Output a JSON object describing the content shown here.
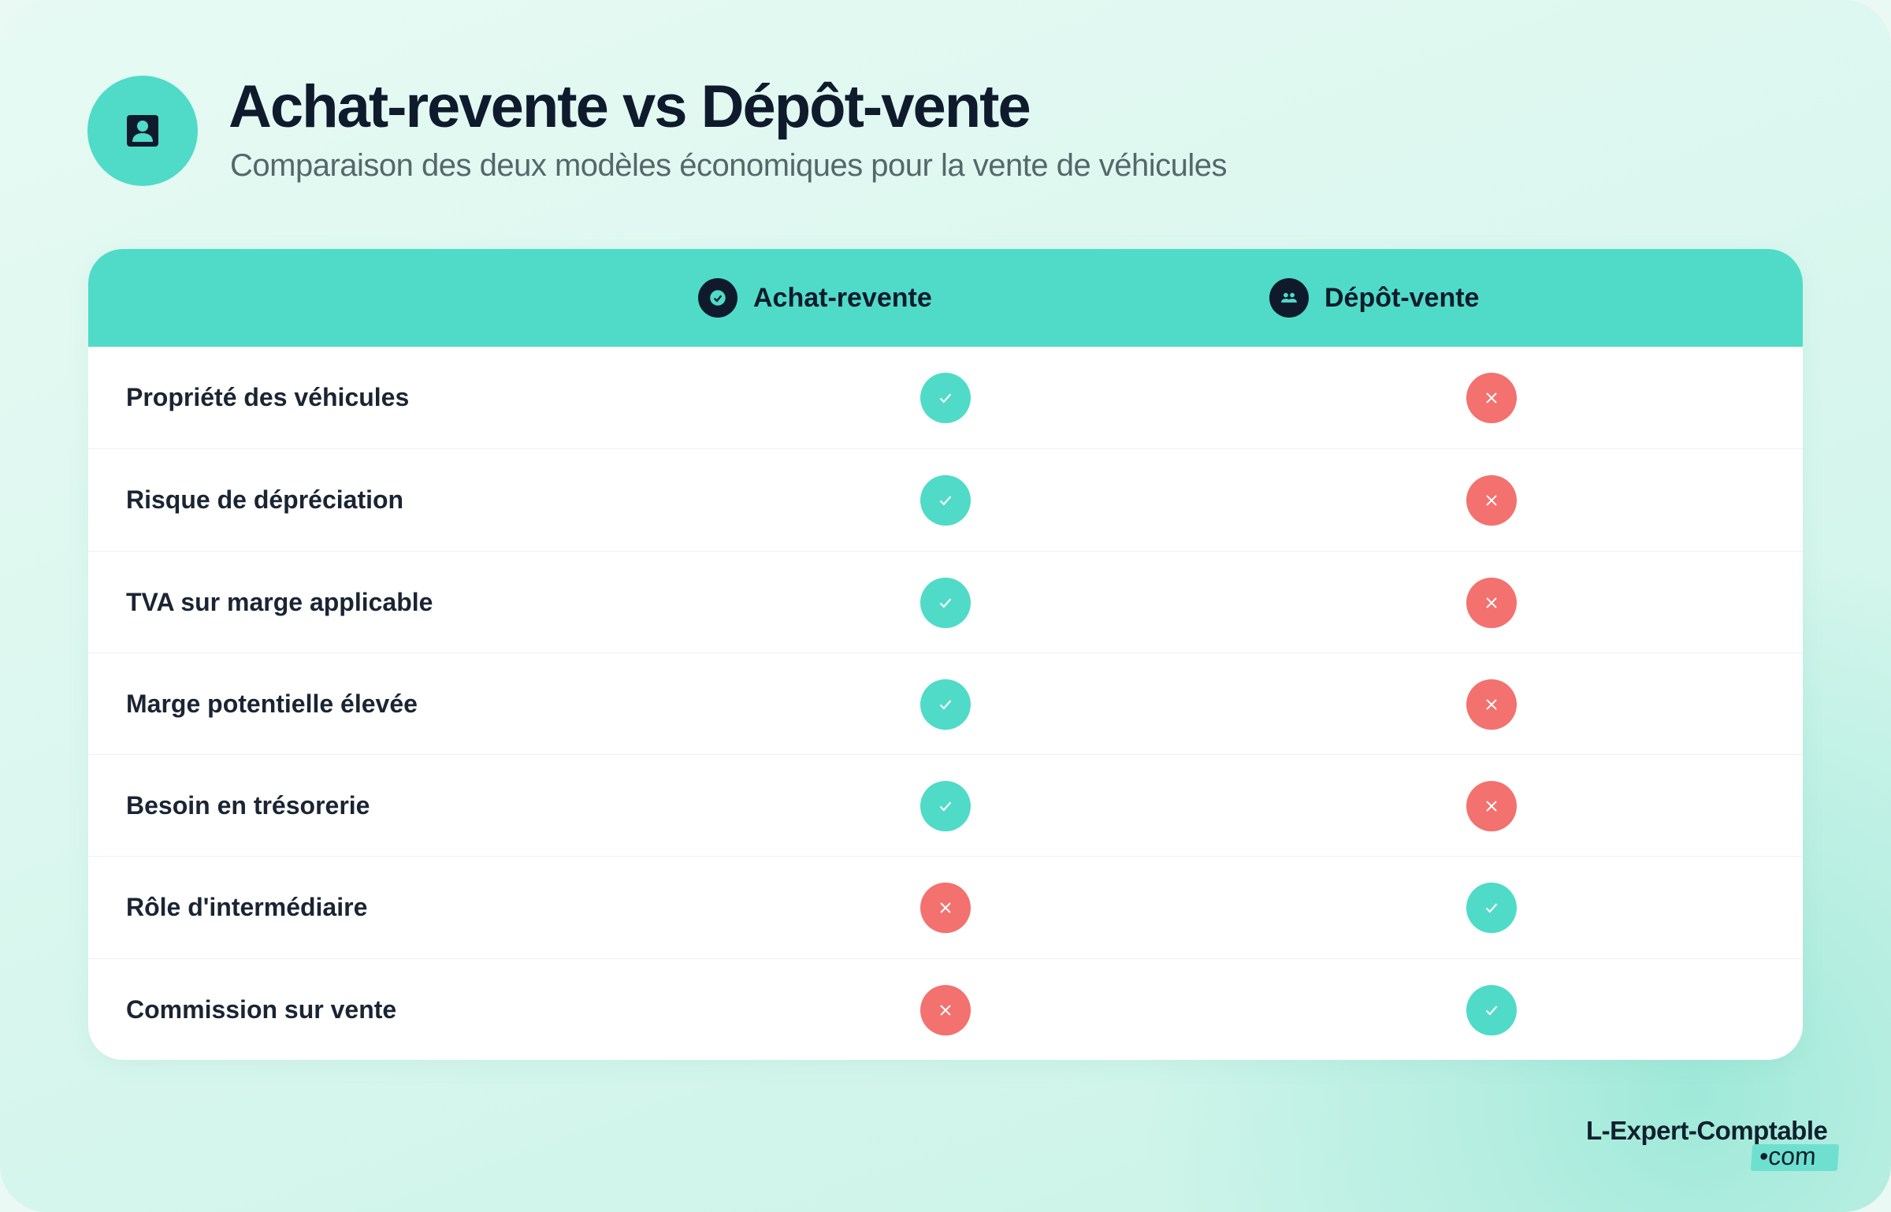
{
  "header": {
    "title": "Achat-revente vs Dépôt-vente",
    "subtitle": "Comparaison des deux modèles économiques pour la vente de véhicules",
    "icon": "person-badge-icon"
  },
  "table": {
    "columns": [
      {
        "label": "Achat-revente",
        "icon": "check-circle-icon"
      },
      {
        "label": "Dépôt-vente",
        "icon": "people-icon"
      }
    ],
    "rows": [
      {
        "label": "Propriété des véhicules",
        "achat_revente": true,
        "depot_vente": false
      },
      {
        "label": "Risque de dépréciation",
        "achat_revente": true,
        "depot_vente": false
      },
      {
        "label": "TVA sur marge applicable",
        "achat_revente": true,
        "depot_vente": false
      },
      {
        "label": "Marge potentielle élevée",
        "achat_revente": true,
        "depot_vente": false
      },
      {
        "label": "Besoin en trésorerie",
        "achat_revente": true,
        "depot_vente": false
      },
      {
        "label": "Rôle d'intermédiaire",
        "achat_revente": false,
        "depot_vente": true
      },
      {
        "label": "Commission sur vente",
        "achat_revente": false,
        "depot_vente": true
      }
    ]
  },
  "colors": {
    "accent": "#4fdbc8",
    "yes": "#4fdbc8",
    "no": "#f3716e",
    "text": "#0f1b2d"
  },
  "logo": {
    "name": "L-Expert-Comptable",
    "tld": "com"
  }
}
